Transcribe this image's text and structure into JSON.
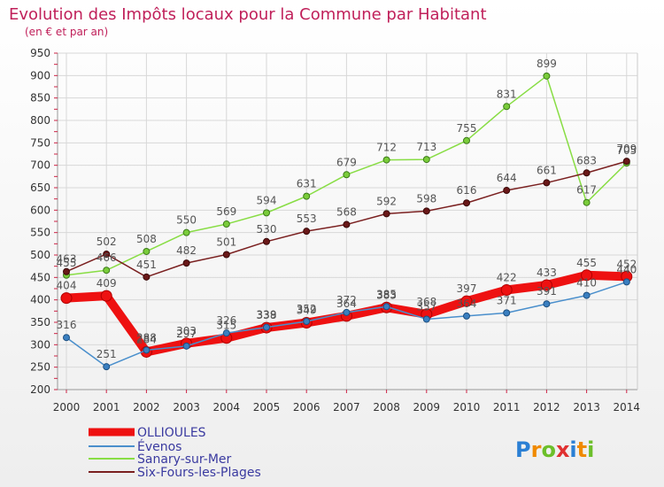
{
  "chart_data": {
    "type": "line",
    "title": "Evolution des Impôts locaux pour la Commune par Habitant",
    "subtitle": "(en € et par an)",
    "xlabel": "",
    "ylabel": "",
    "ylim": [
      200,
      950
    ],
    "yticks": [
      "200",
      "250",
      "300",
      "350",
      "400",
      "450",
      "500",
      "550",
      "600",
      "650",
      "700",
      "750",
      "800",
      "850",
      "900",
      "950"
    ],
    "categories": [
      "2000",
      "2001",
      "2002",
      "2003",
      "2004",
      "2005",
      "2006",
      "2007",
      "2008",
      "2009",
      "2010",
      "2011",
      "2012",
      "2013",
      "2014"
    ],
    "series": [
      {
        "name": "OLLIOULES",
        "color": "#ee1111",
        "values": [
          404,
          409,
          284,
          303,
          315,
          338,
          349,
          364,
          383,
          368,
          397,
          422,
          433,
          455,
          452
        ]
      },
      {
        "name": "Évenos",
        "color": "#4a8fcc",
        "values": [
          316,
          251,
          288,
          297,
          326,
          339,
          352,
          372,
          385,
          357,
          364,
          371,
          391,
          410,
          440
        ]
      },
      {
        "name": "Sanary-sur-Mer",
        "color": "#88dd44",
        "values": [
          455,
          466,
          508,
          550,
          569,
          594,
          631,
          679,
          712,
          713,
          755,
          831,
          899,
          617,
          705
        ]
      },
      {
        "name": "Six-Fours-les-Plages",
        "color": "#7a2020",
        "values": [
          463,
          502,
          451,
          482,
          501,
          530,
          553,
          568,
          592,
          598,
          616,
          644,
          661,
          683,
          709
        ]
      }
    ],
    "data_labels": {
      "OLLIOULES": [
        "404",
        "409",
        "284",
        "303",
        "315",
        "338",
        "349",
        "364",
        "383",
        "368",
        "397",
        "422",
        "433",
        "455",
        "452"
      ],
      "Évenos": [
        "316",
        "251",
        "288",
        "297",
        "326",
        "339",
        "352",
        "372",
        "385",
        "357",
        "364",
        "371",
        "391",
        "410",
        "440"
      ],
      "Sanary-sur-Mer": [
        "455",
        "466",
        "508",
        "550",
        "569",
        "594",
        "631",
        "679",
        "712",
        "713",
        "755",
        "831",
        "899",
        "617",
        "705"
      ],
      "Six-Fours-les-Plages": [
        "463",
        "502",
        "451",
        "482",
        "501",
        "530",
        "553",
        "568",
        "592",
        "598",
        "616",
        "644",
        "661",
        "683",
        "709"
      ]
    },
    "legend": [
      "OLLIOULES",
      "Évenos",
      "Sanary-sur-Mer",
      "Six-Fours-les-Plages"
    ],
    "legend_position": "bottom-left",
    "grid": true
  },
  "logo": {
    "text": "Proxiti",
    "letters": [
      "P",
      "r",
      "o",
      "x",
      "i",
      "t",
      "i"
    ],
    "colors": [
      "#2a7fd4",
      "#f08a00",
      "#6cbf2a",
      "#e03030",
      "#2a7fd4",
      "#f08a00",
      "#6cbf2a"
    ]
  }
}
